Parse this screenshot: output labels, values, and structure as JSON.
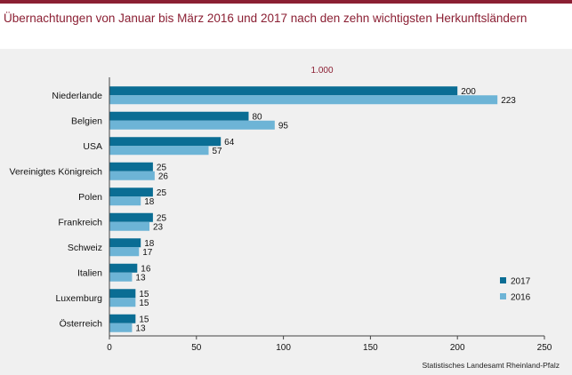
{
  "title": "Übernachtungen von Januar bis März 2016 und 2017 nach den zehn wichtigsten Herkunftsländern",
  "source": "Statistisches Landesamt Rheinland-Pfalz",
  "chart_data": {
    "type": "bar",
    "orientation": "horizontal",
    "unit_label": "1.000",
    "categories": [
      "Niederlande",
      "Belgien",
      "USA",
      "Vereinigtes Königreich",
      "Polen",
      "Frankreich",
      "Schweiz",
      "Italien",
      "Luxemburg",
      "Österreich"
    ],
    "series": [
      {
        "name": "2017",
        "color": "#0a6d94",
        "values": [
          200,
          80,
          64,
          25,
          25,
          25,
          18,
          16,
          15,
          15
        ]
      },
      {
        "name": "2016",
        "color": "#6db4d6",
        "values": [
          223,
          95,
          57,
          26,
          18,
          23,
          17,
          13,
          15,
          13
        ]
      }
    ],
    "xlim": [
      0,
      250
    ],
    "xticks": [
      0,
      50,
      100,
      150,
      200,
      250
    ],
    "grid": false,
    "legend_position": "bottom-right"
  }
}
